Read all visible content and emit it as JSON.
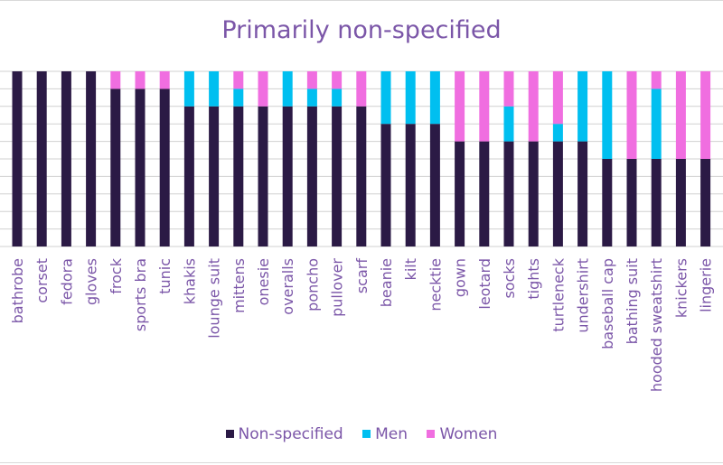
{
  "chart_data": {
    "type": "bar",
    "stacked": true,
    "title": "Primarily non-specified",
    "xlabel": "",
    "ylabel": "",
    "ylim": [
      0,
      10
    ],
    "grid": true,
    "legend_position": "bottom",
    "categories": [
      "bathrobe",
      "corset",
      "fedora",
      "gloves",
      "frock",
      "sports bra",
      "tunic",
      "khakis",
      "lounge suit",
      "mittens",
      "onesie",
      "overalls",
      "poncho",
      "pullover",
      "scarf",
      "beanie",
      "kilt",
      "necktie",
      "gown",
      "leotard",
      "socks",
      "tights",
      "turtleneck",
      "undershirt",
      "baseball cap",
      "bathing suit",
      "hooded sweatshirt",
      "knickers",
      "lingerie"
    ],
    "series": [
      {
        "name": "Non-specified",
        "color": "#2b1a45",
        "values": [
          10,
          10,
          10,
          10,
          9,
          9,
          9,
          8,
          8,
          8,
          8,
          8,
          8,
          8,
          8,
          7,
          7,
          7,
          6,
          6,
          6,
          6,
          6,
          6,
          5,
          5,
          5,
          5,
          5
        ]
      },
      {
        "name": "Men",
        "color": "#00bff0",
        "values": [
          0,
          0,
          0,
          0,
          0,
          0,
          0,
          2,
          2,
          1,
          0,
          2,
          1,
          1,
          0,
          3,
          3,
          3,
          0,
          0,
          2,
          0,
          1,
          4,
          5,
          0,
          4,
          0,
          0
        ]
      },
      {
        "name": "Women",
        "color": "#f06ee0",
        "values": [
          0,
          0,
          0,
          0,
          1,
          1,
          1,
          0,
          0,
          1,
          2,
          0,
          1,
          1,
          2,
          0,
          0,
          0,
          4,
          4,
          2,
          4,
          3,
          0,
          0,
          5,
          1,
          5,
          5
        ]
      }
    ]
  }
}
